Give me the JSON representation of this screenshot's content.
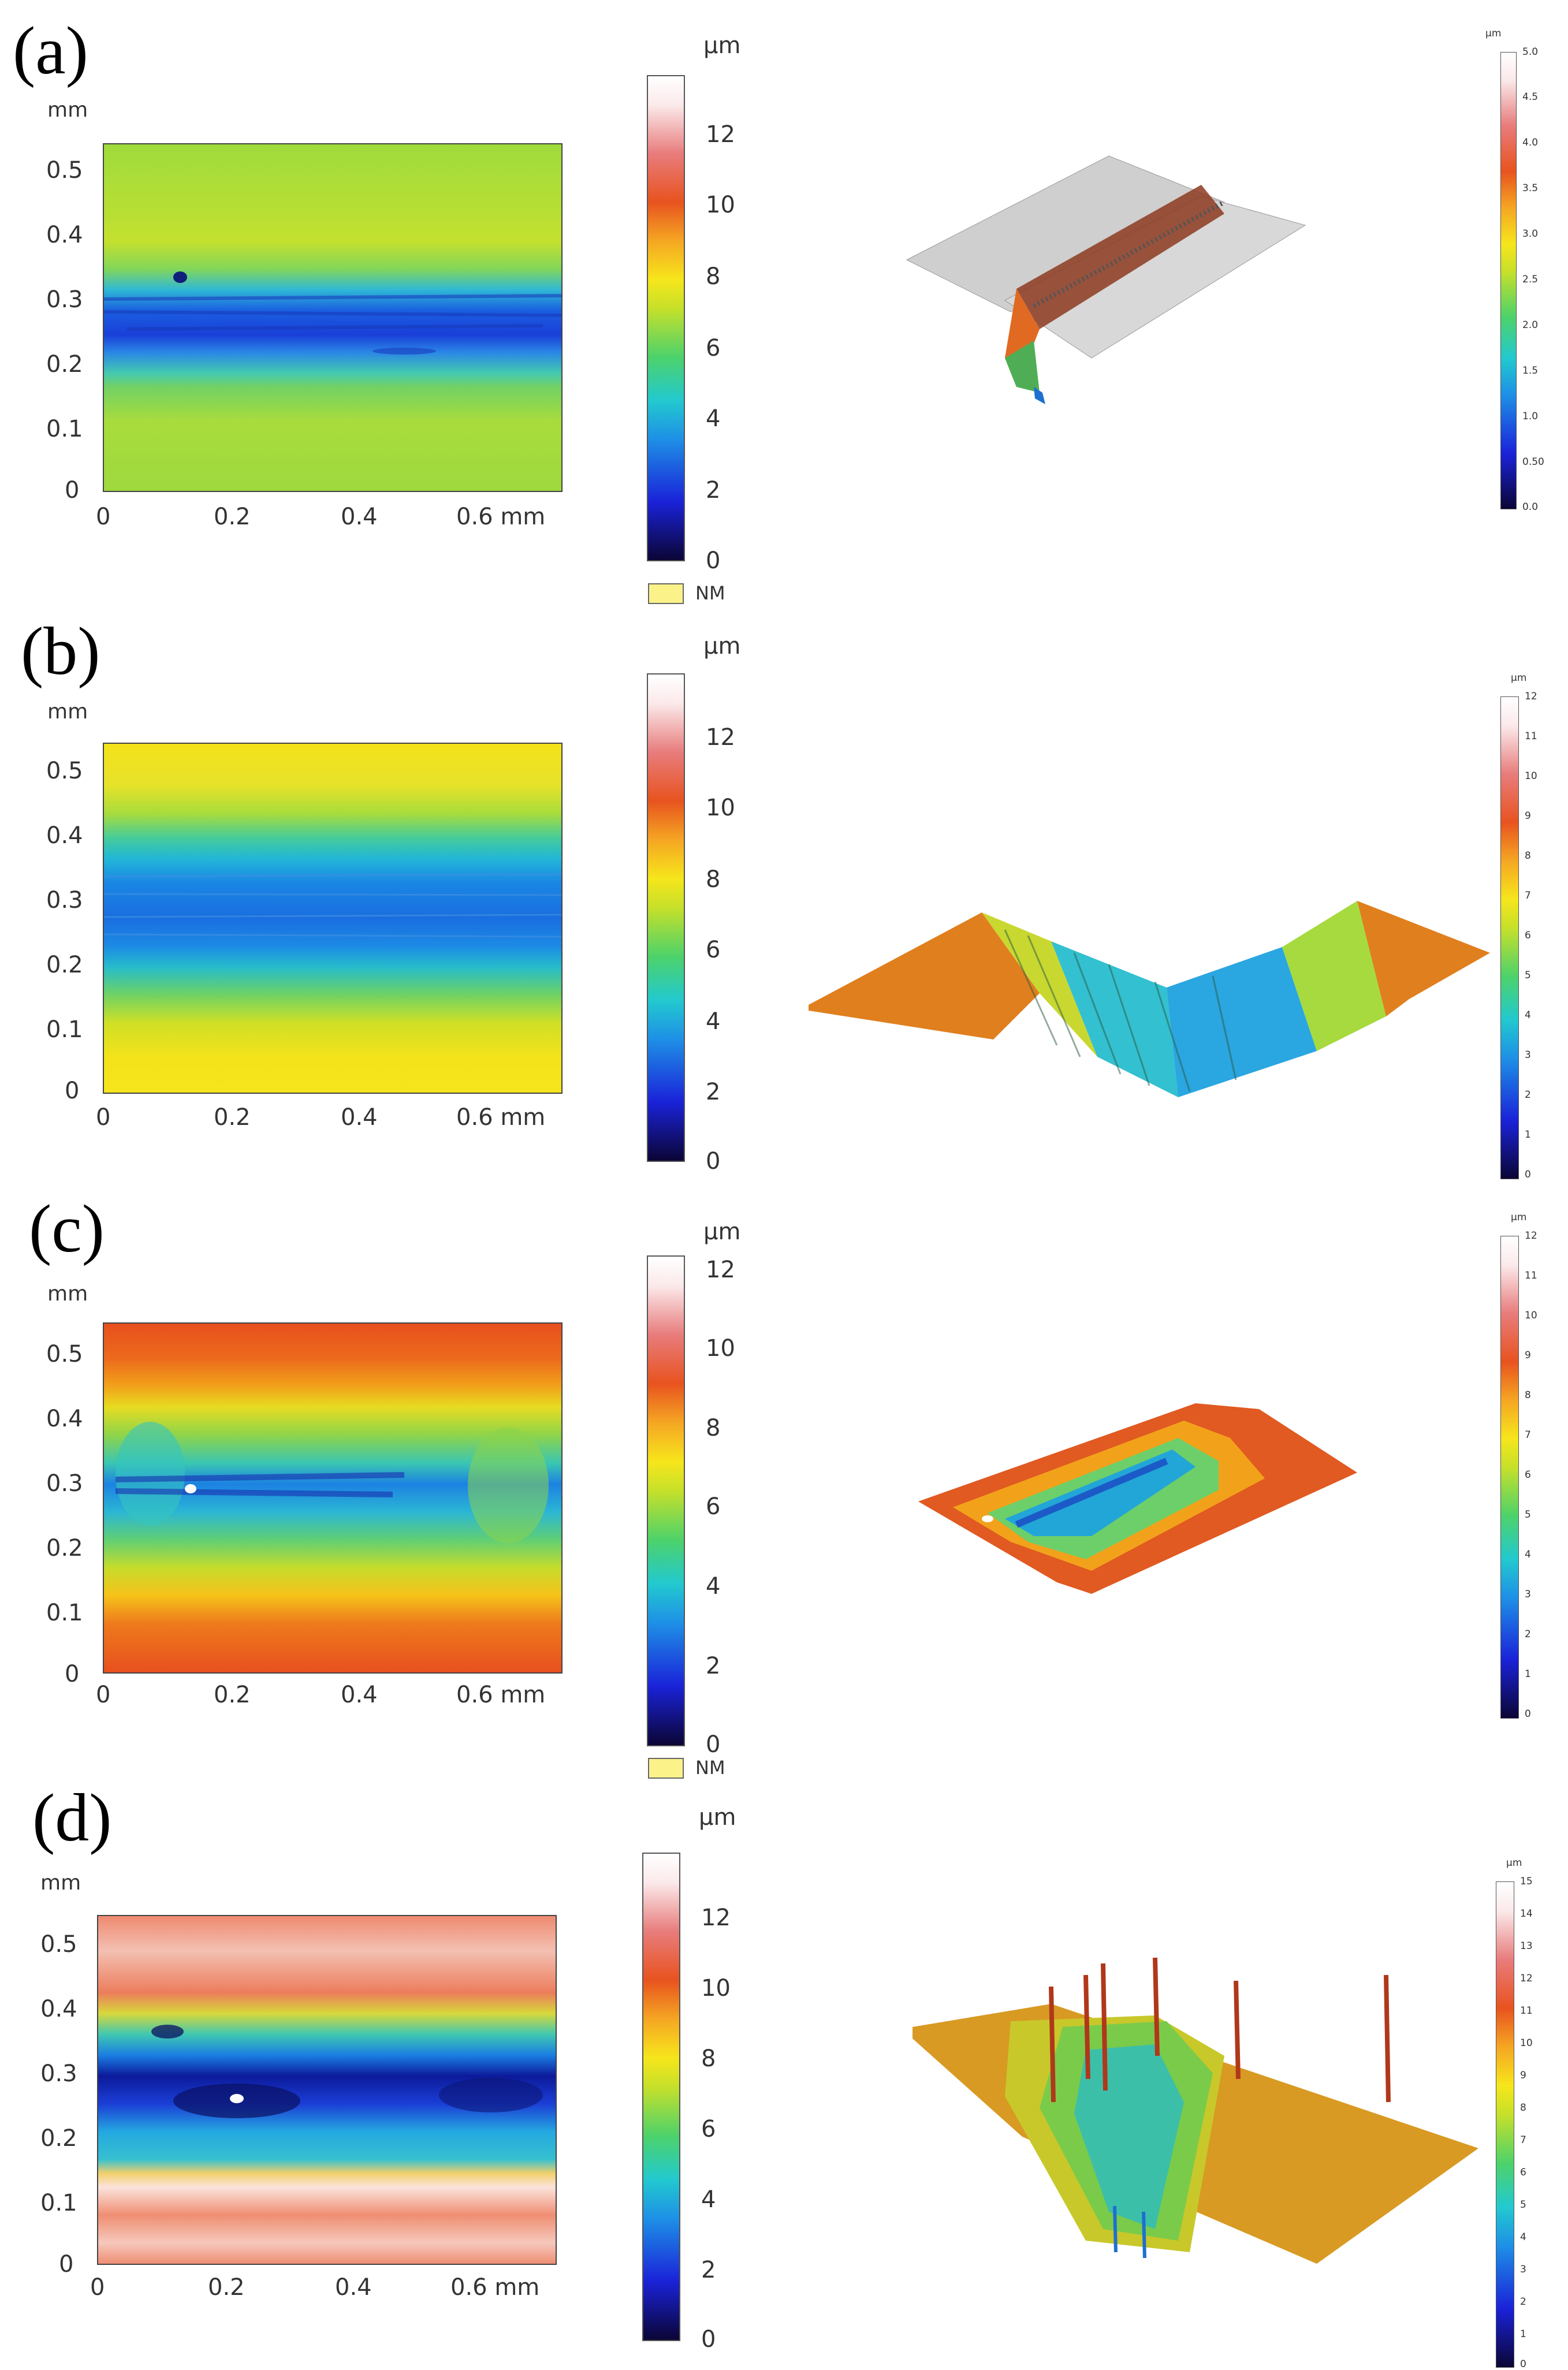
{
  "figure": {
    "panels": [
      {
        "id": "a",
        "label": "(a)",
        "unit2d": "mm",
        "x_ticks": [
          "0",
          "0.2",
          "0.4",
          "0.6 mm"
        ],
        "y_ticks": [
          "0.5",
          "0.4",
          "0.3",
          "0.2",
          "0.1",
          "0"
        ],
        "cbar_unit": "μm",
        "cbar_ticks": [
          "12",
          "10",
          "8",
          "6",
          "4",
          "2",
          "0"
        ],
        "nm_label": "NM",
        "cbar3d_unit": "μm",
        "cbar3d_ticks": [
          "5.0",
          "4.5",
          "4.0",
          "3.5",
          "3.0",
          "2.5",
          "2.0",
          "1.5",
          "1.0",
          "0.50",
          "0.0"
        ]
      },
      {
        "id": "b",
        "label": "(b)",
        "unit2d": "mm",
        "x_ticks": [
          "0",
          "0.2",
          "0.4",
          "0.6 mm"
        ],
        "y_ticks": [
          "0.5",
          "0.4",
          "0.3",
          "0.2",
          "0.1",
          "0"
        ],
        "cbar_unit": "μm",
        "cbar_ticks": [
          "12",
          "10",
          "8",
          "6",
          "4",
          "2",
          "0"
        ],
        "cbar3d_unit": "μm",
        "cbar3d_ticks": [
          "12",
          "11",
          "10",
          "9",
          "8",
          "7",
          "6",
          "5",
          "4",
          "3",
          "2",
          "1",
          "0"
        ]
      },
      {
        "id": "c",
        "label": "(c)",
        "unit2d": "mm",
        "x_ticks": [
          "0",
          "0.2",
          "0.4",
          "0.6 mm"
        ],
        "y_ticks": [
          "0.5",
          "0.4",
          "0.3",
          "0.2",
          "0.1",
          "0"
        ],
        "cbar_unit": "μm",
        "cbar_ticks": [
          "12",
          "10",
          "8",
          "6",
          "4",
          "2",
          "0"
        ],
        "nm_label": "NM",
        "cbar3d_unit": "μm",
        "cbar3d_ticks": [
          "12",
          "11",
          "10",
          "9",
          "8",
          "7",
          "6",
          "5",
          "4",
          "3",
          "2",
          "1",
          "0"
        ]
      },
      {
        "id": "d",
        "label": "(d)",
        "unit2d": "mm",
        "x_ticks": [
          "0",
          "0.2",
          "0.4",
          "0.6 mm"
        ],
        "y_ticks": [
          "0.5",
          "0.4",
          "0.3",
          "0.2",
          "0.1",
          "0"
        ],
        "cbar_unit": "μm",
        "cbar_ticks": [
          "12",
          "10",
          "8",
          "6",
          "4",
          "2",
          "0"
        ],
        "cbar3d_unit": "μm",
        "cbar3d_ticks": [
          "15",
          "14",
          "13",
          "12",
          "11",
          "10",
          "9",
          "8",
          "7",
          "6",
          "5",
          "4",
          "3",
          "2",
          "1",
          "0"
        ]
      }
    ],
    "colors": {
      "height_scale": [
        "#0b0535",
        "#1a22d8",
        "#1e90e6",
        "#22c9cf",
        "#4dd26a",
        "#c6e02a",
        "#f6e61b",
        "#f5a623",
        "#e8531f",
        "#e87c7c",
        "#fbe9ea",
        "#ffffff"
      ]
    }
  }
}
